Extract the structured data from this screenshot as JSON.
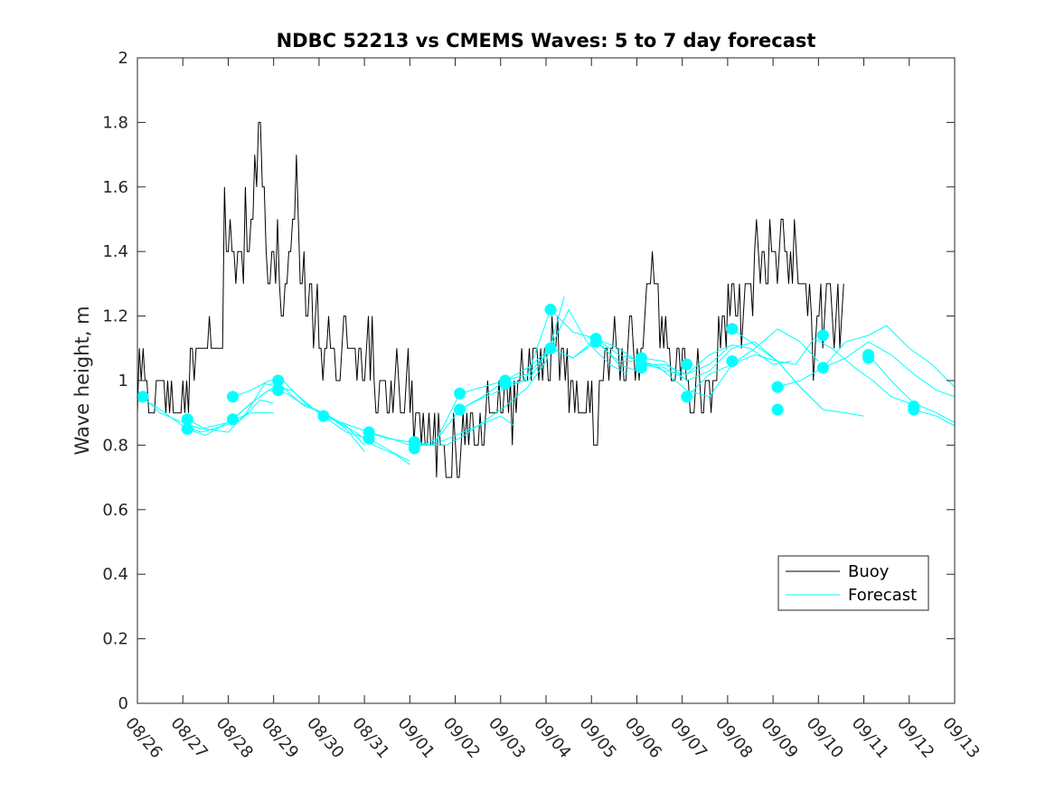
{
  "chart_data": {
    "type": "line",
    "title": "NDBC 52213 vs CMEMS Waves: 5 to 7 day forecast",
    "xlabel": "",
    "ylabel": "Wave height, m",
    "xlim": [
      0,
      18
    ],
    "ylim": [
      0,
      2
    ],
    "x_tick_labels": [
      "08/26",
      "08/27",
      "08/28",
      "08/29",
      "08/30",
      "08/31",
      "09/01",
      "09/02",
      "09/03",
      "09/04",
      "09/05",
      "09/06",
      "09/07",
      "09/08",
      "09/09",
      "09/10",
      "09/11",
      "09/12",
      "09/13"
    ],
    "y_tick_labels": [
      "0",
      "0.2",
      "0.4",
      "0.6",
      "0.8",
      "1",
      "1.2",
      "1.4",
      "1.6",
      "1.8",
      "2"
    ],
    "grid": false,
    "legend_position": "bottom-right",
    "colors": {
      "buoy": "#000000",
      "forecast": "#00ffff",
      "axis": "#262626"
    },
    "series": [
      {
        "name": "Buoy",
        "x_step_days": 0.0417,
        "x_start": 0,
        "values": [
          0.9,
          1.1,
          1.0,
          1.1,
          1.0,
          1.0,
          0.9,
          0.9,
          0.9,
          0.9,
          1.0,
          1.0,
          1.0,
          1.0,
          1.0,
          0.9,
          1.0,
          0.9,
          1.0,
          0.9,
          0.9,
          0.9,
          0.9,
          0.9,
          1.0,
          0.9,
          1.0,
          0.9,
          1.1,
          1.1,
          1.0,
          1.1,
          1.1,
          1.1,
          1.1,
          1.1,
          1.1,
          1.1,
          1.2,
          1.1,
          1.1,
          1.1,
          1.1,
          1.1,
          1.1,
          1.1,
          1.6,
          1.4,
          1.4,
          1.5,
          1.4,
          1.4,
          1.3,
          1.4,
          1.4,
          1.4,
          1.3,
          1.6,
          1.4,
          1.4,
          1.5,
          1.5,
          1.7,
          1.6,
          1.8,
          1.8,
          1.6,
          1.6,
          1.4,
          1.3,
          1.3,
          1.4,
          1.4,
          1.3,
          1.5,
          1.3,
          1.2,
          1.2,
          1.3,
          1.3,
          1.4,
          1.4,
          1.5,
          1.5,
          1.7,
          1.5,
          1.3,
          1.3,
          1.4,
          1.2,
          1.2,
          1.3,
          1.3,
          1.1,
          1.2,
          1.3,
          1.1,
          1.1,
          1.0,
          1.1,
          1.1,
          1.2,
          1.1,
          1.1,
          1.1,
          1.0,
          1.0,
          1.0,
          1.1,
          1.2,
          1.2,
          1.1,
          1.1,
          1.1,
          1.1,
          1.1,
          1.0,
          1.1,
          1.1,
          1.0,
          1.0,
          1.1,
          1.2,
          1.0,
          1.2,
          1.0,
          0.9,
          0.9,
          1.0,
          1.0,
          1.0,
          1.0,
          0.9,
          0.9,
          1.0,
          0.9,
          1.0,
          1.1,
          1.0,
          0.9,
          0.9,
          0.9,
          1.0,
          1.1,
          0.9,
          1.0,
          0.8,
          0.9,
          0.9,
          0.9,
          0.8,
          0.9,
          0.8,
          0.8,
          0.9,
          0.8,
          0.8,
          0.9,
          0.7,
          0.9,
          0.8,
          0.8,
          0.8,
          0.7,
          0.7,
          0.7,
          0.7,
          0.9,
          0.8,
          0.7,
          0.7,
          0.8,
          0.9,
          0.8,
          0.9,
          0.8,
          0.9,
          0.9,
          0.8,
          0.8,
          0.8,
          0.9,
          0.8,
          0.8,
          0.9,
          1.0,
          0.9,
          0.9,
          0.9,
          0.9,
          0.9,
          1.0,
          0.9,
          0.9,
          1.0,
          1.0,
          0.9,
          1.0,
          0.8,
          1.0,
          0.9,
          1.0,
          1.0,
          1.1,
          1.0,
          1.0,
          1.0,
          1.1,
          1.0,
          1.1,
          1.1,
          1.1,
          1.0,
          1.1,
          1.0,
          1.1,
          1.1,
          1.0,
          1.0,
          1.2,
          1.1,
          1.1,
          1.2,
          1.0,
          1.1,
          1.1,
          1.0,
          1.1,
          0.9,
          1.0,
          1.0,
          0.9,
          1.0,
          0.9,
          0.9,
          0.9,
          0.9,
          0.9,
          1.0,
          0.9,
          1.0,
          0.8,
          0.8,
          0.8,
          1.0,
          1.0,
          1.0,
          1.1,
          1.1,
          1.0,
          1.1,
          1.1,
          1.2,
          1.1,
          1.1,
          1.0,
          1.1,
          1.0,
          1.0,
          1.1,
          1.2,
          1.2,
          1.1,
          1.0,
          1.1,
          1.0,
          1.1,
          1.1,
          1.2,
          1.3,
          1.3,
          1.3,
          1.4,
          1.3,
          1.3,
          1.3,
          1.1,
          1.2,
          1.1,
          1.2,
          1.1,
          1.1,
          1.0,
          1.0,
          1.0,
          1.1,
          1.1,
          1.0,
          1.1,
          1.1,
          1.0,
          1.0,
          0.9,
          0.9,
          0.9,
          1.0,
          1.1,
          1.0,
          0.9,
          0.9,
          1.0,
          1.0,
          1.0,
          0.9,
          1.0,
          1.0,
          1.0,
          1.2,
          1.1,
          1.2,
          1.2,
          1.1,
          1.3,
          1.2,
          1.3,
          1.3,
          1.2,
          1.2,
          1.3,
          1.1,
          1.2,
          1.3,
          1.3,
          1.3,
          1.3,
          1.2,
          1.4,
          1.5,
          1.4,
          1.3,
          1.4,
          1.4,
          1.3,
          1.3,
          1.5,
          1.4,
          1.4,
          1.4,
          1.3,
          1.4,
          1.5,
          1.5,
          1.4,
          1.4,
          1.3,
          1.4,
          1.3,
          1.5,
          1.4,
          1.3,
          1.3,
          1.3,
          1.3,
          1.3,
          1.2,
          1.3,
          1.2,
          1.0,
          1.1,
          1.2,
          1.2,
          1.3,
          1.1,
          1.2,
          1.3,
          1.3,
          1.3,
          1.2,
          1.1,
          1.2,
          1.3,
          1.1,
          1.2,
          1.3
        ]
      },
      {
        "name": "Forecast",
        "runs": [
          {
            "x": [
              0.12,
              0.5,
              1.0,
              1.4,
              2.0,
              2.5,
              3.0
            ],
            "y": [
              0.95,
              0.9,
              0.87,
              0.85,
              0.87,
              0.9,
              0.9
            ]
          },
          {
            "x": [
              0.3,
              0.6,
              1.0,
              1.4,
              1.9,
              2.3,
              2.7,
              3.0
            ],
            "y": [
              0.93,
              0.9,
              0.86,
              0.84,
              0.86,
              0.88,
              0.94,
              0.93
            ]
          },
          {
            "x": [
              1.1,
              1.5,
              2.0,
              2.4,
              2.8,
              3.2,
              3.6,
              4.1,
              4.6,
              5.0
            ],
            "y": [
              0.88,
              0.85,
              0.84,
              0.9,
              0.99,
              0.98,
              0.93,
              0.9,
              0.86,
              0.8
            ]
          },
          {
            "x": [
              1.1,
              1.5,
              2.1,
              2.5,
              2.9,
              3.3,
              3.7,
              4.1,
              4.6,
              5.0
            ],
            "y": [
              0.85,
              0.83,
              0.88,
              0.93,
              0.97,
              0.96,
              0.92,
              0.9,
              0.85,
              0.78
            ]
          },
          {
            "x": [
              2.1,
              2.5,
              2.9,
              3.2,
              3.7,
              4.1,
              4.6,
              5.1,
              5.6,
              6.0
            ],
            "y": [
              0.95,
              0.97,
              1.0,
              1.0,
              0.93,
              0.89,
              0.84,
              0.82,
              0.78,
              0.75
            ]
          },
          {
            "x": [
              2.1,
              2.6,
              3.0,
              3.4,
              3.9,
              4.3,
              4.8,
              5.2,
              5.7,
              6.0
            ],
            "y": [
              0.88,
              0.94,
              0.98,
              0.97,
              0.91,
              0.88,
              0.84,
              0.8,
              0.77,
              0.74
            ]
          },
          {
            "x": [
              4.1,
              4.5,
              5.1,
              5.6,
              6.0,
              6.5,
              7.0,
              7.5,
              8.0,
              8.3
            ],
            "y": [
              0.89,
              0.87,
              0.84,
              0.82,
              0.8,
              0.8,
              0.83,
              0.86,
              0.89,
              0.86
            ]
          },
          {
            "x": [
              5.1,
              5.5,
              6.0,
              6.4,
              6.8,
              7.2,
              7.6,
              8.1,
              8.6,
              9.0,
              9.4
            ],
            "y": [
              0.84,
              0.82,
              0.81,
              0.8,
              0.8,
              0.83,
              0.87,
              0.92,
              0.98,
              1.06,
              1.26
            ]
          },
          {
            "x": [
              6.1,
              6.5,
              7.1,
              7.5,
              8.0,
              8.5,
              9.1,
              9.5,
              9.9,
              10.4,
              10.8
            ],
            "y": [
              0.81,
              0.8,
              0.91,
              0.94,
              0.97,
              1.0,
              1.1,
              1.22,
              1.12,
              1.05,
              1.02
            ]
          },
          {
            "x": [
              6.1,
              6.6,
              7.1,
              7.6,
              8.1,
              8.6,
              9.1,
              9.6,
              10.1,
              10.6,
              11.0
            ],
            "y": [
              0.79,
              0.82,
              0.96,
              0.98,
              1.0,
              1.04,
              1.1,
              1.07,
              1.13,
              1.05,
              1.03
            ]
          },
          {
            "x": [
              7.1,
              7.6,
              8.1,
              8.6,
              9.1,
              9.6,
              10.1,
              10.6,
              11.1,
              11.6,
              12.0
            ],
            "y": [
              0.91,
              0.95,
              1.0,
              1.02,
              1.22,
              1.15,
              1.13,
              1.08,
              1.06,
              1.04,
              1.01
            ]
          },
          {
            "x": [
              8.1,
              8.6,
              9.1,
              9.6,
              10.1,
              10.6,
              11.1,
              11.6,
              12.1,
              12.6,
              13.0
            ],
            "y": [
              0.99,
              1.0,
              1.1,
              1.07,
              1.12,
              1.06,
              1.06,
              1.03,
              1.02,
              1.05,
              1.1
            ]
          },
          {
            "x": [
              10.1,
              10.6,
              11.1,
              11.6,
              12.1,
              12.6,
              13.1,
              13.5,
              14.0,
              14.4
            ],
            "y": [
              1.13,
              1.1,
              1.05,
              1.05,
              1.02,
              1.08,
              1.11,
              1.1,
              1.05,
              1.06
            ]
          },
          {
            "x": [
              11.1,
              11.5,
              12.1,
              12.6,
              13.1,
              13.6,
              14.1,
              14.6,
              15.0
            ],
            "y": [
              1.05,
              1.04,
              0.97,
              0.95,
              1.05,
              1.1,
              1.16,
              1.12,
              1.06
            ]
          },
          {
            "x": [
              11.1,
              11.6,
              12.1,
              12.6,
              13.1,
              13.6,
              14.1,
              14.6,
              15.1
            ],
            "y": [
              1.07,
              1.06,
              1.0,
              1.03,
              1.1,
              1.12,
              1.06,
              0.98,
              0.91
            ]
          },
          {
            "x": [
              12.1,
              12.6,
              13.1,
              13.6,
              14.1,
              14.6,
              15.1,
              15.6,
              16.0
            ],
            "y": [
              0.95,
              1.02,
              1.05,
              1.08,
              1.06,
              0.98,
              0.91,
              0.9,
              0.89
            ]
          },
          {
            "x": [
              13.1,
              13.5,
              14.1,
              14.5,
              14.9,
              15.3,
              15.8,
              16.2,
              16.6,
              17.0
            ],
            "y": [
              1.16,
              1.12,
              1.06,
              1.05,
              1.13,
              1.1,
              1.04,
              1.0,
              0.95,
              0.93
            ]
          },
          {
            "x": [
              14.1,
              14.6,
              15.1,
              15.6,
              16.1,
              16.5,
              17.0,
              17.5,
              18.0
            ],
            "y": [
              0.98,
              1.0,
              1.04,
              1.12,
              1.14,
              1.17,
              1.1,
              1.05,
              0.98
            ]
          },
          {
            "x": [
              15.1,
              15.6,
              16.1,
              16.6,
              17.1,
              17.6,
              18.0
            ],
            "y": [
              1.04,
              1.07,
              1.12,
              1.08,
              1.02,
              0.97,
              0.95
            ]
          },
          {
            "x": [
              16.1,
              16.6,
              17.1,
              17.6,
              18.0
            ],
            "y": [
              1.08,
              1.0,
              0.93,
              0.9,
              0.87
            ]
          },
          {
            "x": [
              17.1,
              17.6,
              18.0
            ],
            "y": [
              0.91,
              0.89,
              0.86
            ]
          }
        ],
        "markers": [
          {
            "x": 0.12,
            "y": 0.95
          },
          {
            "x": 1.1,
            "y": 0.88
          },
          {
            "x": 1.1,
            "y": 0.85
          },
          {
            "x": 2.1,
            "y": 0.95
          },
          {
            "x": 2.1,
            "y": 0.88
          },
          {
            "x": 3.1,
            "y": 1.0
          },
          {
            "x": 3.1,
            "y": 0.97
          },
          {
            "x": 4.1,
            "y": 0.89
          },
          {
            "x": 5.1,
            "y": 0.84
          },
          {
            "x": 5.1,
            "y": 0.82
          },
          {
            "x": 6.1,
            "y": 0.81
          },
          {
            "x": 6.1,
            "y": 0.79
          },
          {
            "x": 7.1,
            "y": 0.96
          },
          {
            "x": 7.1,
            "y": 0.91
          },
          {
            "x": 8.1,
            "y": 1.0
          },
          {
            "x": 8.1,
            "y": 0.99
          },
          {
            "x": 9.1,
            "y": 1.22
          },
          {
            "x": 9.1,
            "y": 1.1
          },
          {
            "x": 10.1,
            "y": 1.13
          },
          {
            "x": 10.1,
            "y": 1.12
          },
          {
            "x": 11.1,
            "y": 1.07
          },
          {
            "x": 11.1,
            "y": 1.05
          },
          {
            "x": 11.1,
            "y": 1.04
          },
          {
            "x": 12.1,
            "y": 1.05
          },
          {
            "x": 12.1,
            "y": 0.95
          },
          {
            "x": 13.1,
            "y": 1.16
          },
          {
            "x": 13.1,
            "y": 1.06
          },
          {
            "x": 14.1,
            "y": 0.98
          },
          {
            "x": 14.1,
            "y": 0.91
          },
          {
            "x": 15.1,
            "y": 1.14
          },
          {
            "x": 15.1,
            "y": 1.04
          },
          {
            "x": 16.1,
            "y": 1.08
          },
          {
            "x": 16.1,
            "y": 1.07
          },
          {
            "x": 17.1,
            "y": 0.92
          },
          {
            "x": 17.1,
            "y": 0.91
          }
        ]
      }
    ],
    "legend": [
      {
        "label": "Buoy"
      },
      {
        "label": "Forecast"
      }
    ]
  }
}
